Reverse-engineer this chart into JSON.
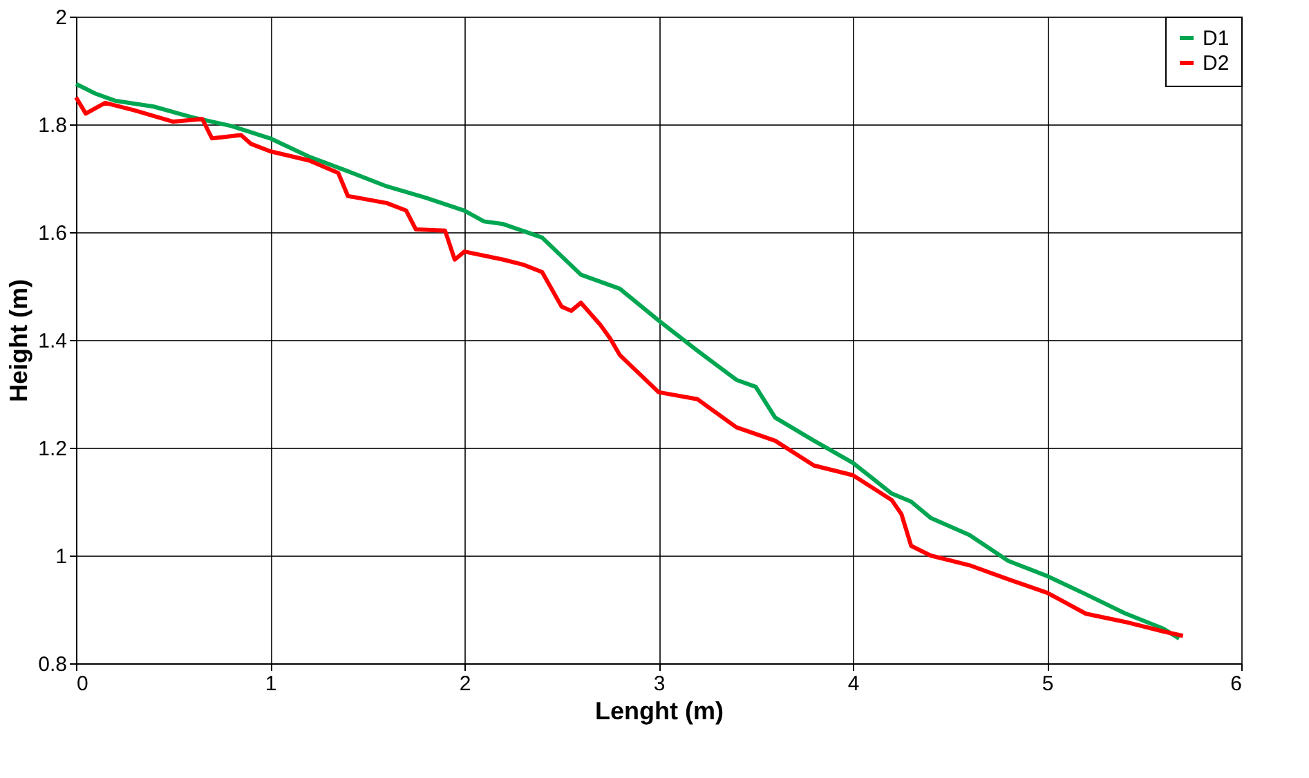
{
  "chart_data": {
    "type": "line",
    "xlabel": "Lenght (m)",
    "ylabel": "Height (m)",
    "xlim": [
      0,
      6
    ],
    "xticks": [
      0,
      1,
      2,
      3,
      4,
      5,
      6
    ],
    "ylim": [
      0.8,
      2
    ],
    "yticks": [
      0.8,
      1,
      1.2,
      1.4,
      1.6,
      1.8,
      2
    ],
    "grid": true,
    "legend": "top right",
    "marker": "none",
    "line_style": "solid",
    "series": [
      {
        "name": "D1",
        "color": "#00a651",
        "x": [
          0,
          0.1,
          0.2,
          0.4,
          0.6,
          0.8,
          1.0,
          1.2,
          1.4,
          1.6,
          1.8,
          2.0,
          2.1,
          2.2,
          2.4,
          2.6,
          2.8,
          3.0,
          3.2,
          3.4,
          3.5,
          3.6,
          3.8,
          4.0,
          4.2,
          4.3,
          4.4,
          4.6,
          4.8,
          5.0,
          5.2,
          5.4,
          5.6,
          5.68
        ],
        "values": [
          1.875,
          1.857,
          1.844,
          1.833,
          1.813,
          1.797,
          1.774,
          1.74,
          1.713,
          1.685,
          1.664,
          1.64,
          1.62,
          1.615,
          1.59,
          1.521,
          1.495,
          1.436,
          1.38,
          1.326,
          1.313,
          1.256,
          1.213,
          1.172,
          1.115,
          1.1,
          1.07,
          1.038,
          0.99,
          0.962,
          0.928,
          0.893,
          0.864,
          0.846
        ]
      },
      {
        "name": "D2",
        "color": "#ff0000",
        "x": [
          0,
          0.05,
          0.15,
          0.3,
          0.5,
          0.65,
          0.7,
          0.85,
          0.9,
          1.0,
          1.2,
          1.35,
          1.4,
          1.6,
          1.7,
          1.75,
          1.9,
          1.95,
          2.0,
          2.2,
          2.3,
          2.4,
          2.5,
          2.55,
          2.6,
          2.7,
          2.75,
          2.8,
          3.0,
          3.2,
          3.4,
          3.6,
          3.8,
          4.0,
          4.2,
          4.25,
          4.3,
          4.4,
          4.6,
          4.8,
          5.0,
          5.2,
          5.4,
          5.6,
          5.7
        ],
        "values": [
          1.85,
          1.82,
          1.84,
          1.826,
          1.805,
          1.81,
          1.774,
          1.78,
          1.764,
          1.75,
          1.733,
          1.71,
          1.667,
          1.654,
          1.64,
          1.605,
          1.603,
          1.549,
          1.564,
          1.549,
          1.54,
          1.526,
          1.462,
          1.454,
          1.469,
          1.428,
          1.403,
          1.372,
          1.303,
          1.29,
          1.238,
          1.213,
          1.167,
          1.149,
          1.103,
          1.077,
          1.018,
          1.0,
          0.982,
          0.956,
          0.931,
          0.892,
          0.877,
          0.859,
          0.851
        ]
      }
    ]
  }
}
